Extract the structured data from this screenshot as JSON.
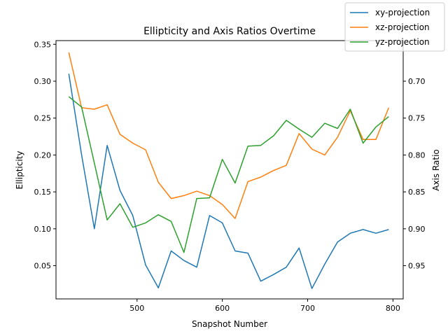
{
  "chart_data": {
    "type": "line",
    "title": "Ellipticity and Axis Ratios Overtime",
    "xlabel": "Snapshot Number",
    "ylabel": "Ellipticity",
    "y2label": "Axis Ratio",
    "xlim": [
      405,
      812
    ],
    "ylim": [
      0.005,
      0.355
    ],
    "y2lim": [
      0.995,
      0.645
    ],
    "xticks": [
      500,
      600,
      700,
      800
    ],
    "yticks": [
      0.05,
      0.1,
      0.15,
      0.2,
      0.25,
      0.3,
      0.35
    ],
    "y2ticks": [
      0.7,
      0.75,
      0.8,
      0.85,
      0.9,
      0.95
    ],
    "x": [
      420,
      435,
      450,
      465,
      480,
      495,
      510,
      525,
      540,
      555,
      570,
      585,
      600,
      615,
      630,
      645,
      660,
      675,
      690,
      705,
      720,
      735,
      750,
      765,
      780,
      795
    ],
    "series": [
      {
        "name": "xy-projection",
        "color": "#1f77b4",
        "values": [
          0.31,
          0.2,
          0.1,
          0.213,
          0.152,
          0.118,
          0.051,
          0.02,
          0.07,
          0.057,
          0.048,
          0.118,
          0.108,
          0.07,
          0.067,
          0.029,
          0.038,
          0.048,
          0.074,
          0.019,
          0.052,
          0.082,
          0.094,
          0.099,
          0.094,
          0.099
        ]
      },
      {
        "name": "xz-projection",
        "color": "#ff7f0e",
        "values": [
          0.339,
          0.264,
          0.262,
          0.268,
          0.228,
          0.216,
          0.207,
          0.163,
          0.141,
          0.145,
          0.151,
          0.145,
          0.133,
          0.114,
          0.164,
          0.17,
          0.179,
          0.186,
          0.229,
          0.208,
          0.2,
          0.224,
          0.26,
          0.221,
          0.221,
          0.264
        ]
      },
      {
        "name": "yz-projection",
        "color": "#2ca02c",
        "values": [
          0.279,
          0.265,
          0.189,
          0.112,
          0.134,
          0.102,
          0.108,
          0.119,
          0.11,
          0.068,
          0.141,
          0.142,
          0.194,
          0.162,
          0.212,
          0.213,
          0.226,
          0.247,
          0.235,
          0.224,
          0.243,
          0.236,
          0.262,
          0.216,
          0.238,
          0.252
        ]
      }
    ],
    "legend": "top-right",
    "grid": false
  }
}
